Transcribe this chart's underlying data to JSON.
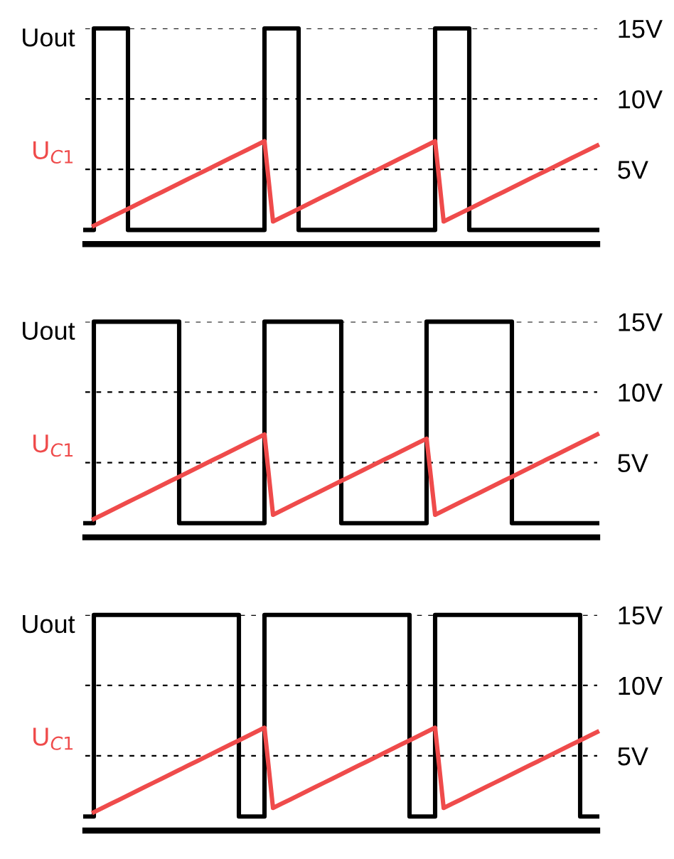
{
  "chart_data": [
    {
      "type": "line",
      "categories": [
        null,
        null,
        null,
        null,
        null,
        null,
        null,
        null,
        null,
        null,
        null,
        null,
        null,
        null,
        null,
        null,
        null,
        null,
        null,
        null,
        null,
        null,
        null,
        null,
        null,
        null,
        null,
        null,
        null,
        null,
        null,
        null,
        null,
        null,
        null,
        null,
        null,
        null,
        null,
        null,
        null,
        null,
        null,
        null,
        null,
        null,
        null,
        null,
        null,
        null,
        null,
        null,
        null,
        null,
        null,
        null,
        null,
        null,
        null,
        null,
        null
      ],
      "ylim": [
        -0.3,
        15
      ],
      "yticks": [
        {
          "value": 5,
          "label": "5V"
        },
        {
          "value": 10,
          "label": "10V"
        },
        {
          "value": 15,
          "label": "15V"
        }
      ],
      "grid": "y",
      "tick_labels": "y",
      "legend": false,
      "series": [
        {
          "name": "Uout",
          "type": "step",
          "color": "#000000",
          "values": [
            0.7,
            15,
            15,
            15,
            15,
            0.7,
            0.7,
            0.7,
            0.7,
            0.7,
            0.7,
            0.7,
            0.7,
            0.7,
            0.7,
            0.7,
            0.7,
            0.7,
            0.7,
            0.7,
            0.7,
            15,
            15,
            15,
            15,
            0.7,
            0.7,
            0.7,
            0.7,
            0.7,
            0.7,
            0.7,
            0.7,
            0.7,
            0.7,
            0.7,
            0.7,
            0.7,
            0.7,
            0.7,
            0.7,
            15,
            15,
            15,
            15,
            0.7,
            0.7,
            0.7,
            0.7,
            0.7,
            0.7,
            0.7,
            0.7,
            0.7,
            0.7,
            0.7,
            0.7,
            0.7,
            0.7,
            0.7,
            0.7
          ]
        },
        {
          "name": "U$_{C1}$",
          "color": "#ef4b4b",
          "values": [
            null,
            1,
            1.3,
            1.6,
            1.9,
            2.2,
            2.5,
            2.8,
            3.1,
            3.4,
            3.7,
            4,
            4.3,
            4.6,
            4.9,
            5.2,
            5.5,
            5.8,
            6.1,
            6.4,
            6.7,
            7,
            1.3,
            1.6,
            1.9,
            2.2,
            2.5,
            2.8,
            3.1,
            3.4,
            3.7,
            4,
            4.3,
            4.6,
            4.9,
            5.2,
            5.5,
            5.8,
            6.1,
            6.4,
            6.7,
            7,
            1.3,
            1.6,
            1.9,
            2.2,
            2.5,
            2.8,
            3.1,
            3.4,
            3.7,
            4,
            4.3,
            4.6,
            4.9,
            5.2,
            5.5,
            5.8,
            6.1,
            6.4,
            6.7
          ]
        }
      ]
    },
    {
      "type": "line",
      "categories": [
        null,
        null,
        null,
        null,
        null,
        null,
        null,
        null,
        null,
        null,
        null,
        null,
        null,
        null,
        null,
        null,
        null,
        null,
        null,
        null,
        null,
        null,
        null,
        null,
        null,
        null,
        null,
        null,
        null,
        null,
        null,
        null,
        null,
        null,
        null,
        null,
        null,
        null,
        null,
        null,
        null,
        null,
        null,
        null,
        null,
        null,
        null,
        null,
        null,
        null,
        null,
        null,
        null,
        null,
        null,
        null,
        null,
        null,
        null,
        null,
        null
      ],
      "ylim": [
        -0.3,
        15
      ],
      "yticks": [
        {
          "value": 5,
          "label": "5V"
        },
        {
          "value": 10,
          "label": "10V"
        },
        {
          "value": 15,
          "label": "15V"
        }
      ],
      "grid": "y",
      "tick_labels": "y",
      "legend": false,
      "series": [
        {
          "name": "Uout",
          "type": "step",
          "color": "#000000",
          "values": [
            0.7,
            15,
            15,
            15,
            15,
            15,
            15,
            15,
            15,
            15,
            15,
            0.7,
            0.7,
            0.7,
            0.7,
            0.7,
            0.7,
            0.7,
            0.7,
            0.7,
            0.7,
            15,
            15,
            15,
            15,
            15,
            15,
            15,
            15,
            15,
            0.7,
            0.7,
            0.7,
            0.7,
            0.7,
            0.7,
            0.7,
            0.7,
            0.7,
            0.7,
            15,
            15,
            15,
            15,
            15,
            15,
            15,
            15,
            15,
            15,
            0.7,
            0.7,
            0.7,
            0.7,
            0.7,
            0.7,
            0.7,
            0.7,
            0.7,
            0.7,
            0.7
          ]
        },
        {
          "name": "U$_{C1}$",
          "color": "#ef4b4b",
          "values": [
            null,
            1,
            1.3,
            1.6,
            1.9,
            2.2,
            2.5,
            2.8,
            3.1,
            3.4,
            3.7,
            4,
            4.3,
            4.6,
            4.9,
            5.2,
            5.5,
            5.8,
            6.1,
            6.4,
            6.7,
            7,
            1.3,
            1.6,
            1.9,
            2.2,
            2.5,
            2.8,
            3.1,
            3.4,
            3.7,
            4,
            4.3,
            4.6,
            4.9,
            5.2,
            5.5,
            5.8,
            6.1,
            6.4,
            6.7,
            1.3,
            1.6,
            1.9,
            2.2,
            2.5,
            2.8,
            3.1,
            3.4,
            3.7,
            4,
            4.3,
            4.6,
            4.9,
            5.2,
            5.5,
            5.8,
            6.1,
            6.4,
            6.7,
            7
          ]
        }
      ]
    },
    {
      "type": "line",
      "categories": [
        null,
        null,
        null,
        null,
        null,
        null,
        null,
        null,
        null,
        null,
        null,
        null,
        null,
        null,
        null,
        null,
        null,
        null,
        null,
        null,
        null,
        null,
        null,
        null,
        null,
        null,
        null,
        null,
        null,
        null,
        null,
        null,
        null,
        null,
        null,
        null,
        null,
        null,
        null,
        null,
        null,
        null,
        null,
        null,
        null,
        null,
        null,
        null,
        null,
        null,
        null,
        null,
        null,
        null,
        null,
        null,
        null,
        null,
        null,
        null,
        null
      ],
      "ylim": [
        -0.3,
        15
      ],
      "yticks": [
        {
          "value": 5,
          "label": "5V"
        },
        {
          "value": 10,
          "label": "10V"
        },
        {
          "value": 15,
          "label": "15V"
        }
      ],
      "grid": "y",
      "tick_labels": "y",
      "legend": false,
      "series": [
        {
          "name": "Uout",
          "type": "step",
          "color": "#000000",
          "values": [
            0.7,
            15,
            15,
            15,
            15,
            15,
            15,
            15,
            15,
            15,
            15,
            15,
            15,
            15,
            15,
            15,
            15,
            15,
            0.7,
            0.7,
            0.7,
            15,
            15,
            15,
            15,
            15,
            15,
            15,
            15,
            15,
            15,
            15,
            15,
            15,
            15,
            15,
            15,
            15,
            0.7,
            0.7,
            0.7,
            15,
            15,
            15,
            15,
            15,
            15,
            15,
            15,
            15,
            15,
            15,
            15,
            15,
            15,
            15,
            15,
            15,
            0.7,
            0.7,
            0.7
          ]
        },
        {
          "name": "U$_{C1}$",
          "color": "#ef4b4b",
          "values": [
            null,
            1,
            1.3,
            1.6,
            1.9,
            2.2,
            2.5,
            2.8,
            3.1,
            3.4,
            3.7,
            4,
            4.3,
            4.6,
            4.9,
            5.2,
            5.5,
            5.8,
            6.1,
            6.4,
            6.7,
            7,
            1.3,
            1.6,
            1.9,
            2.2,
            2.5,
            2.8,
            3.1,
            3.4,
            3.7,
            4,
            4.3,
            4.6,
            4.9,
            5.2,
            5.5,
            5.8,
            6.1,
            6.4,
            6.7,
            7,
            1.3,
            1.6,
            1.9,
            2.2,
            2.5,
            2.8,
            3.1,
            3.4,
            3.7,
            4,
            4.3,
            4.6,
            4.9,
            5.2,
            5.5,
            5.8,
            6.1,
            6.4,
            6.7
          ]
        }
      ]
    }
  ]
}
